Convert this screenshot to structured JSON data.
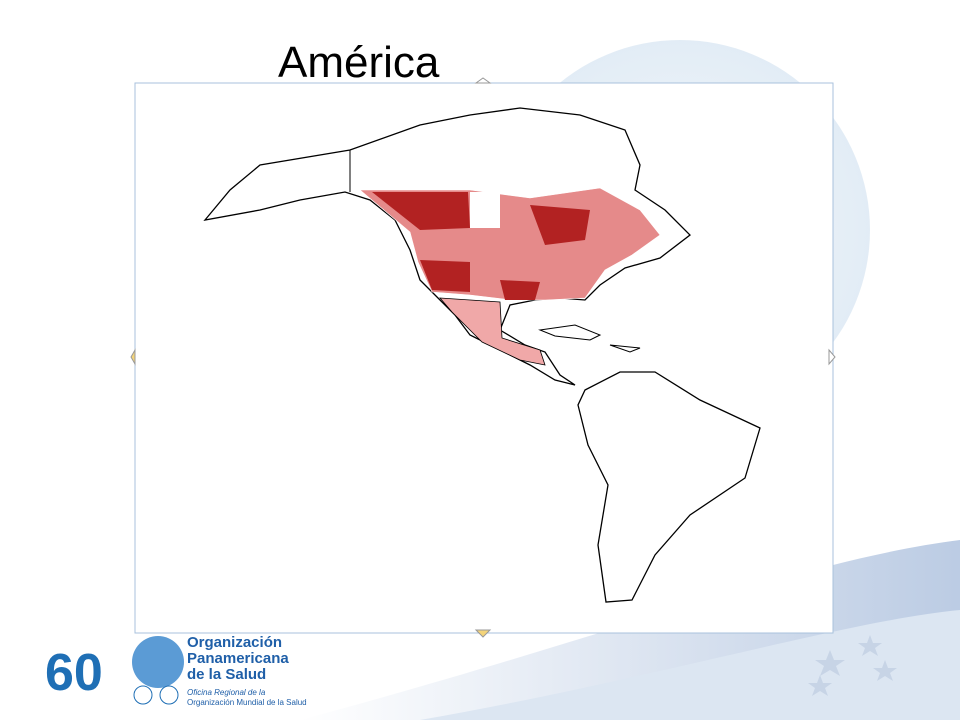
{
  "slide": {
    "title": "América",
    "logo": {
      "number": "60",
      "org_line1": "Organización",
      "org_line2": "Panamericana",
      "org_line3": "de la Salud",
      "office_line1": "Oficina Regional de la",
      "office_line2": "Organización Mundial de la Salud"
    }
  }
}
